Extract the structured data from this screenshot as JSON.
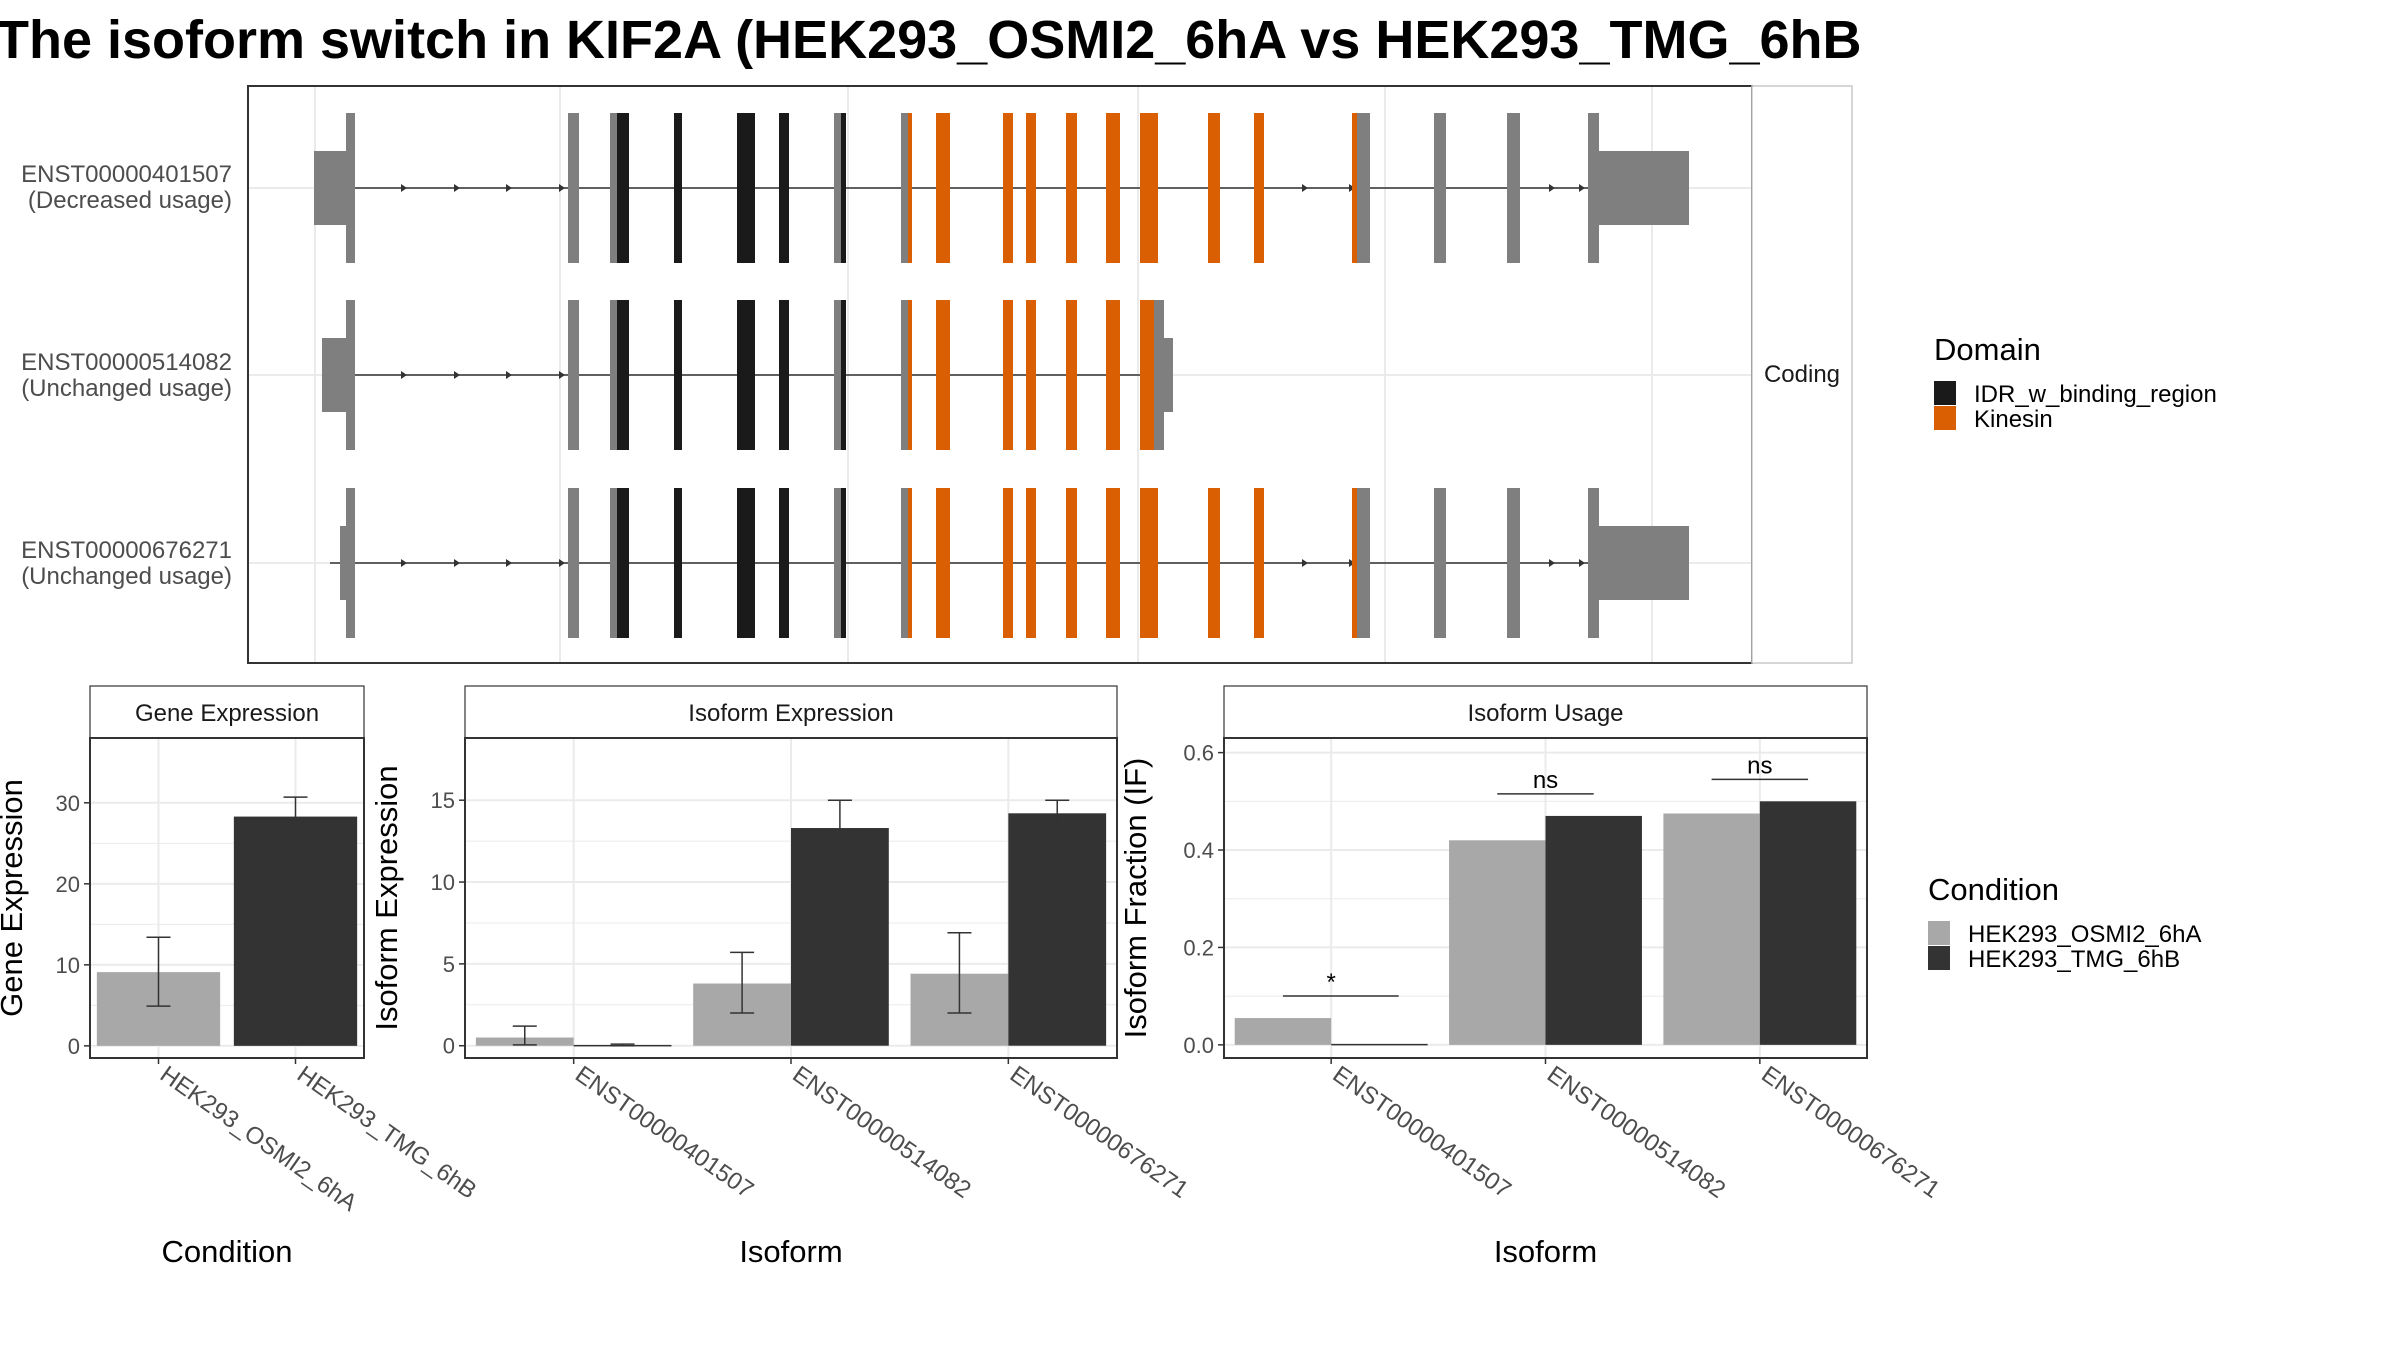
{
  "title": "The isoform switch in KIF2A (HEK293_OSMI2_6hA vs HEK293_TMG_6hB",
  "colors": {
    "idr": "#1a1a1a",
    "kinesin": "#d95f02",
    "exon": "#7f7f7f",
    "osmi": "#a8a8a8",
    "tmg": "#333333",
    "grid": "#ebebeb",
    "strip_bg": "#ffffff",
    "strip_border": "#c8c8c8"
  },
  "chart_data": [
    {
      "type": "gene-structure",
      "facet_label": "Coding",
      "legend": {
        "title": "Domain",
        "items": [
          "IDR_w_binding_region",
          "Kinesin"
        ]
      },
      "isoforms": [
        {
          "id": "ENST00000401507",
          "usage": "(Decreased usage)"
        },
        {
          "id": "ENST00000514082",
          "usage": "(Unchanged usage)"
        },
        {
          "id": "ENST00000676271",
          "usage": "(Unchanged usage)"
        }
      ]
    },
    {
      "type": "bar",
      "strip": "Gene Expression",
      "xlabel": "Condition",
      "ylabel": "Gene Expression",
      "ylim": [
        -1.5,
        38
      ],
      "yticks": [
        0,
        10,
        20,
        30
      ],
      "categories": [
        "HEK293_OSMI2_6hA",
        "HEK293_TMG_6hB"
      ],
      "values": [
        9.1,
        28.3
      ],
      "errors": [
        [
          4.9,
          13.4
        ],
        [
          25.9,
          30.7
        ]
      ]
    },
    {
      "type": "bar",
      "strip": "Isoform Expression",
      "xlabel": "Isoform",
      "ylabel": "Isoform Expression",
      "ylim": [
        -0.75,
        18.8
      ],
      "yticks": [
        0,
        5,
        10,
        15
      ],
      "categories": [
        "ENST00000401507",
        "ENST00000514082",
        "ENST00000676271"
      ],
      "series": [
        {
          "name": "HEK293_OSMI2_6hA",
          "values": [
            0.5,
            3.8,
            4.4
          ],
          "errors": [
            [
              0.05,
              1.2
            ],
            [
              2.0,
              5.7
            ],
            [
              2.0,
              6.9
            ]
          ]
        },
        {
          "name": "HEK293_TMG_6hB",
          "values": [
            0.05,
            13.3,
            14.2
          ],
          "errors": [
            [
              0.0,
              0.1
            ],
            [
              11.6,
              15.0
            ],
            [
              13.4,
              15.0
            ]
          ]
        }
      ]
    },
    {
      "type": "bar",
      "strip": "Isoform Usage",
      "xlabel": "Isoform",
      "ylabel": "Isoform Fraction (IF)",
      "ylim": [
        -0.027,
        0.63
      ],
      "yticks": [
        "0.0",
        "0.2",
        "0.4",
        "0.6"
      ],
      "categories": [
        "ENST00000401507",
        "ENST00000514082",
        "ENST00000676271"
      ],
      "series": [
        {
          "name": "HEK293_OSMI2_6hA",
          "values": [
            0.055,
            0.42,
            0.475
          ]
        },
        {
          "name": "HEK293_TMG_6hB",
          "values": [
            0.002,
            0.47,
            0.5
          ]
        }
      ],
      "annotations": [
        "*",
        "ns",
        "ns"
      ]
    }
  ],
  "condition_legend": {
    "title": "Condition",
    "items": [
      "HEK293_OSMI2_6hA",
      "HEK293_TMG_6hB"
    ]
  }
}
